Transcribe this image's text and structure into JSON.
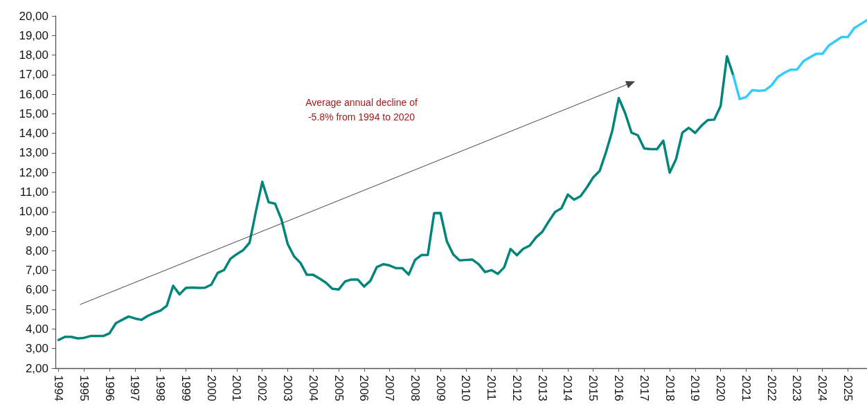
{
  "chart_data": {
    "type": "line",
    "annotations": [
      "Average annual decline of -5.8% from 1994 to 2020"
    ],
    "series": [
      {
        "color": "#00857a",
        "x": [
          1994,
          1994.25,
          1994.5,
          1994.75,
          1995,
          1995.25,
          1995.5,
          1995.75,
          1996,
          1996.25,
          1996.5,
          1996.75,
          1997,
          1997.25,
          1997.5,
          1997.75,
          1998,
          1998.25,
          1998.5,
          1998.75,
          1999,
          1999.25,
          1999.5,
          1999.75,
          2000,
          2000.25,
          2000.5,
          2000.75,
          2001,
          2001.25,
          2001.5,
          2001.75,
          2002,
          2002.25,
          2002.5,
          2002.75,
          2003,
          2003.25,
          2003.5,
          2003.75,
          2004,
          2004.25,
          2004.5,
          2004.75,
          2005,
          2005.25,
          2005.5,
          2005.75,
          2006,
          2006.25,
          2006.5,
          2006.75,
          2007,
          2007.25,
          2007.5,
          2007.75,
          2008,
          2008.25,
          2008.5,
          2008.75,
          2009,
          2009.25,
          2009.5,
          2009.75,
          2010,
          2010.25,
          2010.5,
          2010.75,
          2011,
          2011.25,
          2011.5,
          2011.75,
          2012,
          2012.25,
          2012.5,
          2012.75,
          2013,
          2013.25,
          2013.5,
          2013.75,
          2014,
          2014.25,
          2014.5,
          2014.75,
          2015,
          2015.25,
          2015.5,
          2015.75,
          2016,
          2016.25,
          2016.5,
          2016.75,
          2017,
          2017.25,
          2017.5,
          2017.75,
          2018,
          2018.25,
          2018.5,
          2018.75,
          2019,
          2019.25,
          2019.5,
          2019.75,
          2020,
          2020.25,
          2020.5
        ],
        "values": [
          3.44,
          3.6,
          3.6,
          3.52,
          3.55,
          3.64,
          3.64,
          3.64,
          3.78,
          4.3,
          4.47,
          4.64,
          4.54,
          4.47,
          4.67,
          4.82,
          4.94,
          5.19,
          6.21,
          5.77,
          6.1,
          6.12,
          6.1,
          6.11,
          6.27,
          6.87,
          7.02,
          7.59,
          7.83,
          8.03,
          8.41,
          10.01,
          11.52,
          10.48,
          10.41,
          9.61,
          8.34,
          7.71,
          7.38,
          6.77,
          6.77,
          6.58,
          6.37,
          6.06,
          6.02,
          6.43,
          6.53,
          6.53,
          6.17,
          6.47,
          7.17,
          7.31,
          7.25,
          7.11,
          7.11,
          6.78,
          7.53,
          7.78,
          7.78,
          9.92,
          9.93,
          8.48,
          7.81,
          7.51,
          7.53,
          7.55,
          7.31,
          6.91,
          7.01,
          6.82,
          7.15,
          8.09,
          7.77,
          8.1,
          8.26,
          8.68,
          8.97,
          9.5,
          9.98,
          10.17,
          10.87,
          10.61,
          10.79,
          11.24,
          11.75,
          12.08,
          13.04,
          14.15,
          15.8,
          15.04,
          14.04,
          13.9,
          13.23,
          13.19,
          13.19,
          13.62,
          11.99,
          12.68,
          14.04,
          14.28,
          14.02,
          14.39,
          14.68,
          14.7,
          15.39,
          17.94,
          16.95
        ]
      },
      {
        "color": "#33ccff",
        "x": [
          2020.5,
          2020.75,
          2021,
          2021.25,
          2021.5,
          2021.75,
          2022,
          2022.25,
          2022.5,
          2022.75,
          2023,
          2023.25,
          2023.5,
          2023.75,
          2024,
          2024.25,
          2024.5,
          2024.75,
          2025,
          2025.25,
          2025.5,
          2025.75
        ],
        "values": [
          16.95,
          15.75,
          15.85,
          16.21,
          16.17,
          16.2,
          16.45,
          16.88,
          17.09,
          17.25,
          17.26,
          17.68,
          17.88,
          18.06,
          18.06,
          18.49,
          18.7,
          18.92,
          18.92,
          19.38,
          19.58,
          19.78
        ]
      }
    ],
    "xlim": [
      1993.875,
      2025.75
    ],
    "xticks": [
      1994,
      1995,
      1996,
      1997,
      1998,
      1999,
      2000,
      2001,
      2002,
      2003,
      2004,
      2005,
      2006,
      2007,
      2008,
      2009,
      2010,
      2011,
      2012,
      2013,
      2014,
      2015,
      2016,
      2017,
      2018,
      2019,
      2020,
      2021,
      2022,
      2023,
      2024,
      2025
    ],
    "ylim": [
      2,
      20
    ],
    "yticks": [
      {
        "value": 2,
        "label": "2,00"
      },
      {
        "value": 3,
        "label": "3,00"
      },
      {
        "value": 4,
        "label": "4,00"
      },
      {
        "value": 5,
        "label": "5,00"
      },
      {
        "value": 6,
        "label": "6,00"
      },
      {
        "value": 7,
        "label": "7,00"
      },
      {
        "value": 8,
        "label": "8,00"
      },
      {
        "value": 9,
        "label": "9,00"
      },
      {
        "value": 10,
        "label": "10,00"
      },
      {
        "value": 11,
        "label": "11,00"
      },
      {
        "value": 12,
        "label": "12,00"
      },
      {
        "value": 13,
        "label": "13,00"
      },
      {
        "value": 14,
        "label": "14,00"
      },
      {
        "value": 15,
        "label": "15,00"
      },
      {
        "value": 16,
        "label": "16,00"
      },
      {
        "value": 17,
        "label": "17,00"
      },
      {
        "value": 18,
        "label": "18,00"
      },
      {
        "value": 19,
        "label": "19,00"
      },
      {
        "value": 20,
        "label": "20,00"
      }
    ],
    "grid": false,
    "marker": "none",
    "line_style": "solid"
  }
}
